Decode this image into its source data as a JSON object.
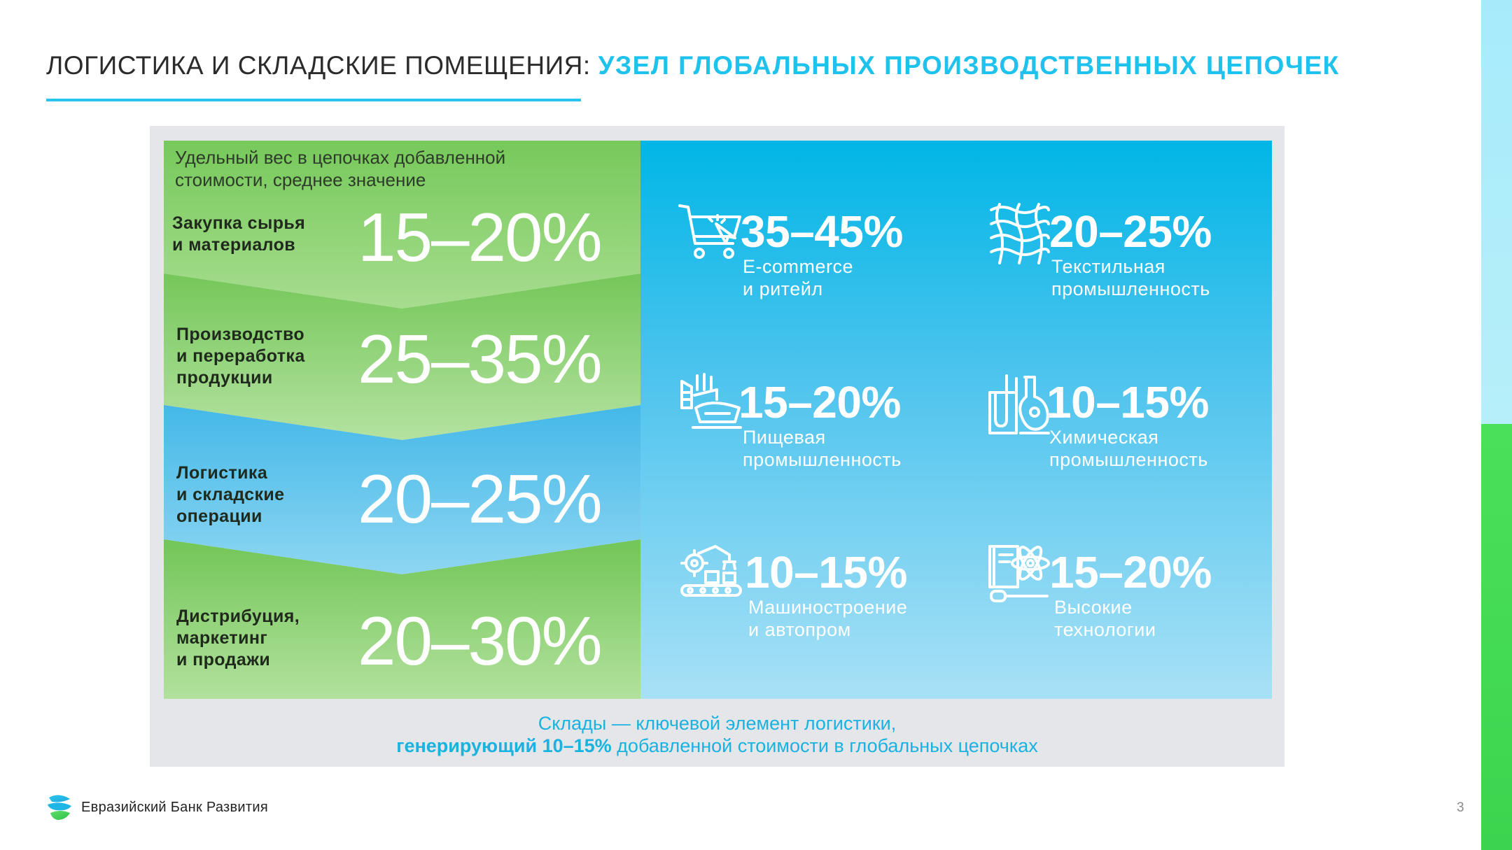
{
  "header": {
    "title_main": "ЛОГИСТИКА И СКЛАДСКИЕ ПОМЕЩЕНИЯ:",
    "title_accent": "УЗЕЛ ГЛОБАЛЬНЫХ ПРОИЗВОДСТВЕННЫХ ЦЕПОЧЕК"
  },
  "value_chain": {
    "caption": "Удельный вес в цепочках добавленной стоимости, среднее значение",
    "caption_line1": "Удельный вес в цепочках добавленной",
    "caption_line2": "стоимости, среднее значение",
    "stages": [
      {
        "label_lines": [
          "Закупка сырья",
          "и материалов"
        ],
        "value": "15–20%"
      },
      {
        "label_lines": [
          "Производство",
          "и переработка",
          "продукции"
        ],
        "value": "25–35%"
      },
      {
        "label_lines": [
          "Логистика",
          "и складские",
          "операции"
        ],
        "value": "20–25%"
      },
      {
        "label_lines": [
          "Дистрибуция,",
          "маркетинг",
          "и продажи"
        ],
        "value": "20–30%"
      }
    ]
  },
  "industries": [
    {
      "icon": "shopping-cart-icon",
      "value": "35–45%",
      "label_lines": [
        "E-commerce",
        "и ритейл"
      ]
    },
    {
      "icon": "textile-weave-icon",
      "value": "20–25%",
      "label_lines": [
        "Текстильная",
        "промышленность"
      ]
    },
    {
      "icon": "food-factory-icon",
      "value": "15–20%",
      "label_lines": [
        "Пищевая",
        "промышленность"
      ]
    },
    {
      "icon": "chemistry-flask-icon",
      "value": "10–15%",
      "label_lines": [
        "Химическая",
        "промышленность"
      ]
    },
    {
      "icon": "robot-arm-conveyor-icon",
      "value": "10–15%",
      "label_lines": [
        "Машиностроение",
        "и автопром"
      ]
    },
    {
      "icon": "hi-tech-atom-icon",
      "value": "15–20%",
      "label_lines": [
        "Высокие",
        "технологии"
      ]
    }
  ],
  "footnote": {
    "line1": "Склады — ключевой элемент логистики,",
    "line2_bold": "генерирующий 10–15%",
    "line2_rest": " добавленной стоимости в глобальных цепочках"
  },
  "footer": {
    "brand": "Евразийский Банк Развития",
    "page_number": "3"
  },
  "colors": {
    "accent_blue": "#1ec2ec",
    "green": "#76c95a",
    "blue_panel": "#00b6e6",
    "panel_bg": "#e5e6e9"
  }
}
